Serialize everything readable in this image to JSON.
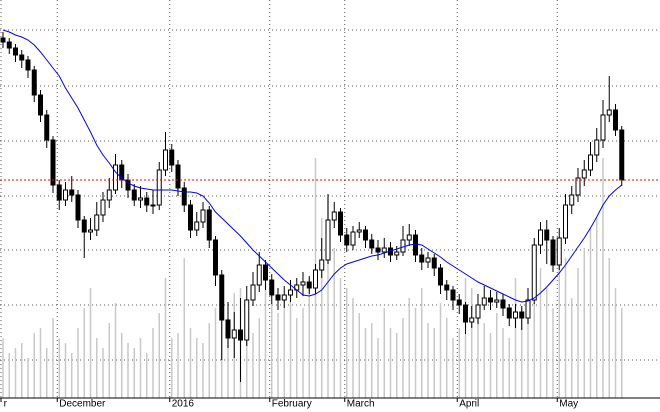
{
  "chart_data": {
    "type": "candlestick",
    "categories": [
      "r",
      null,
      null,
      null,
      null,
      null,
      null,
      null,
      null,
      "December",
      null,
      null,
      null,
      null,
      null,
      null,
      null,
      null,
      null,
      null,
      null,
      null,
      null,
      null,
      null,
      null,
      null,
      "2016",
      null,
      null,
      null,
      null,
      null,
      null,
      null,
      null,
      null,
      null,
      null,
      null,
      null,
      null,
      null,
      "February",
      null,
      null,
      null,
      null,
      null,
      null,
      null,
      null,
      null,
      null,
      null,
      "March",
      null,
      null,
      null,
      null,
      null,
      null,
      null,
      null,
      null,
      null,
      null,
      null,
      null,
      null,
      null,
      null,
      null,
      "April",
      null,
      null,
      null,
      null,
      null,
      null,
      null,
      null,
      null,
      null,
      null,
      null,
      null,
      null,
      null,
      "May",
      null,
      null,
      null,
      null,
      null,
      null,
      null,
      null,
      null,
      null
    ],
    "open": [
      360,
      356,
      350,
      343,
      338,
      328,
      303,
      283,
      258,
      213,
      198,
      208,
      203,
      178,
      166,
      168,
      183,
      198,
      208,
      233,
      218,
      208,
      198,
      200,
      193,
      193,
      228,
      248,
      233,
      210,
      193,
      168,
      176,
      188,
      158,
      123,
      78,
      60,
      68,
      58,
      98,
      113,
      133,
      118,
      103,
      98,
      103,
      108,
      113,
      116,
      110,
      128,
      138,
      178,
      186,
      163,
      153,
      166,
      168,
      158,
      150,
      146,
      150,
      143,
      146,
      158,
      163,
      143,
      136,
      140,
      130,
      113,
      108,
      98,
      93,
      76,
      80,
      93,
      100,
      96,
      98,
      90,
      80,
      86,
      80,
      98,
      153,
      168,
      158,
      133,
      160,
      193,
      203,
      220,
      228,
      243,
      258,
      283,
      288,
      268
    ],
    "high": [
      366,
      360,
      354,
      348,
      342,
      332,
      308,
      288,
      262,
      218,
      216,
      222,
      208,
      182,
      180,
      196,
      206,
      220,
      244,
      238,
      224,
      214,
      212,
      206,
      208,
      236,
      266,
      254,
      238,
      216,
      198,
      186,
      196,
      192,
      162,
      128,
      96,
      86,
      100,
      112,
      126,
      146,
      138,
      124,
      110,
      112,
      118,
      120,
      126,
      122,
      134,
      160,
      204,
      196,
      190,
      170,
      172,
      176,
      172,
      164,
      158,
      160,
      156,
      152,
      172,
      174,
      168,
      150,
      146,
      144,
      134,
      118,
      112,
      104,
      96,
      92,
      104,
      112,
      108,
      106,
      104,
      94,
      94,
      92,
      110,
      160,
      176,
      178,
      162,
      170,
      204,
      212,
      230,
      238,
      256,
      270,
      298,
      322,
      294,
      272
    ],
    "low": [
      350,
      344,
      336,
      330,
      320,
      296,
      276,
      250,
      205,
      188,
      192,
      196,
      170,
      140,
      158,
      162,
      176,
      190,
      204,
      210,
      200,
      192,
      190,
      186,
      184,
      188,
      222,
      226,
      202,
      186,
      160,
      162,
      170,
      150,
      112,
      38,
      50,
      40,
      16,
      52,
      92,
      106,
      108,
      94,
      88,
      90,
      96,
      100,
      102,
      104,
      104,
      120,
      134,
      170,
      156,
      146,
      148,
      160,
      150,
      144,
      138,
      140,
      136,
      138,
      142,
      152,
      136,
      128,
      130,
      122,
      104,
      98,
      88,
      84,
      64,
      70,
      74,
      88,
      88,
      90,
      82,
      72,
      70,
      68,
      74,
      94,
      144,
      134,
      126,
      128,
      154,
      184,
      196,
      212,
      222,
      236,
      250,
      276,
      262,
      212
    ],
    "close": [
      356,
      350,
      343,
      338,
      328,
      303,
      283,
      258,
      213,
      198,
      208,
      203,
      178,
      166,
      168,
      183,
      198,
      208,
      233,
      218,
      208,
      198,
      200,
      193,
      193,
      228,
      248,
      233,
      210,
      193,
      168,
      176,
      188,
      158,
      123,
      78,
      60,
      68,
      58,
      98,
      113,
      133,
      118,
      103,
      98,
      103,
      108,
      113,
      116,
      110,
      128,
      138,
      178,
      186,
      163,
      153,
      166,
      168,
      158,
      150,
      146,
      150,
      143,
      146,
      158,
      163,
      143,
      136,
      140,
      130,
      113,
      108,
      98,
      93,
      76,
      80,
      93,
      100,
      96,
      98,
      90,
      80,
      86,
      80,
      98,
      153,
      168,
      158,
      133,
      160,
      193,
      203,
      220,
      228,
      243,
      258,
      283,
      288,
      268,
      218
    ],
    "volume": [
      60,
      45,
      50,
      55,
      40,
      65,
      70,
      50,
      80,
      60,
      55,
      45,
      70,
      90,
      110,
      60,
      50,
      75,
      95,
      65,
      55,
      50,
      60,
      45,
      70,
      85,
      120,
      60,
      65,
      140,
      70,
      60,
      55,
      75,
      90,
      95,
      80,
      105,
      110,
      70,
      65,
      80,
      120,
      95,
      85,
      100,
      110,
      80,
      90,
      120,
      240,
      180,
      200,
      150,
      120,
      110,
      100,
      85,
      70,
      75,
      60,
      90,
      70,
      65,
      80,
      100,
      90,
      110,
      75,
      70,
      95,
      80,
      60,
      70,
      120,
      110,
      80,
      75,
      65,
      85,
      70,
      60,
      120,
      90,
      100,
      95,
      130,
      110,
      90,
      160,
      140,
      100,
      130,
      150,
      170,
      180,
      240,
      140,
      110,
      90
    ],
    "ma": [
      368,
      366,
      363,
      361,
      358,
      353,
      346,
      338,
      330,
      322,
      310,
      300,
      290,
      278,
      266,
      253,
      243,
      235,
      226,
      220,
      215,
      212,
      210,
      209,
      208,
      208,
      208,
      208,
      207,
      206,
      206,
      205,
      202,
      195,
      186,
      180,
      174,
      168,
      162,
      155,
      148,
      142,
      136,
      130,
      124,
      118,
      113,
      108,
      103,
      102,
      104,
      108,
      116,
      124,
      130,
      134,
      136,
      138,
      140,
      142,
      143,
      145,
      147,
      149,
      151,
      153,
      154,
      153,
      149,
      145,
      141,
      136,
      132,
      128,
      124,
      120,
      116,
      113,
      110,
      107,
      104,
      101,
      98,
      96,
      97,
      100,
      105,
      111,
      118,
      125,
      133,
      142,
      151,
      160,
      170,
      181,
      193,
      202,
      208,
      213
    ],
    "ylim": [
      0,
      398
    ],
    "y2lim": [
      0,
      398
    ],
    "grid_y": [
      368,
      312,
      257,
      202,
      148,
      93,
      38
    ],
    "grid": true,
    "up_color": "#ffffff",
    "down_color": "#000000",
    "ma_color": "#0000ff",
    "volume_color": "#c8c8c8",
    "last_line_color": "#ff0000"
  }
}
